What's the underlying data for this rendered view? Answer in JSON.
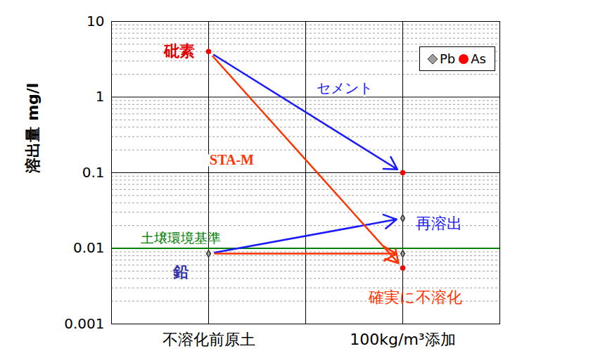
{
  "chart_data": {
    "type": "scatter",
    "categories": [
      "不溶化前原土",
      "100kg/m³添加"
    ],
    "y_label": "溶出量 mg/l",
    "log": "y",
    "grid": true,
    "legend": "upper right",
    "ylim": [
      0.001,
      10
    ],
    "yticks": [
      0.001,
      0.01,
      0.1,
      1,
      10
    ],
    "series": [
      {
        "name": "Pb",
        "color": "#a0a0a0",
        "marker": "diamond",
        "label": "鉛",
        "label_color": "#3333aa",
        "before": 0.0085,
        "after": [
          0.025,
          0.0085
        ]
      },
      {
        "name": "As",
        "color": "#ff0000",
        "marker": "circle",
        "label": "砒素",
        "label_color": "#e00000",
        "before": 4,
        "after": [
          0.1,
          0.0055
        ]
      }
    ],
    "treatments": [
      {
        "name": "セメント",
        "color": "#1a1aff",
        "note": "再溶出"
      },
      {
        "name": "STA-M",
        "color": "#ff3300",
        "note": "確実に不溶化"
      }
    ],
    "reference_line": {
      "value": 0.01,
      "label": "土壌環境基準",
      "color": "#008000"
    }
  }
}
